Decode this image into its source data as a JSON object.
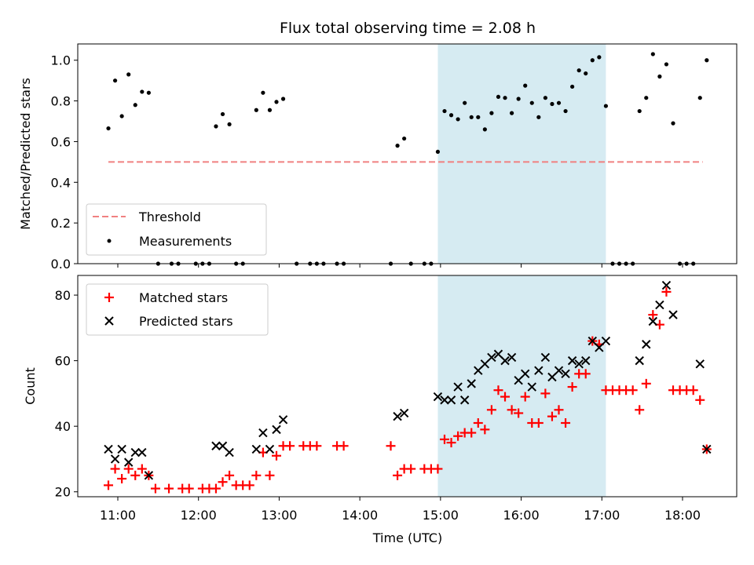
{
  "chart_data": {
    "type": "scatter",
    "title": "Flux total observing time = 2.08 h",
    "xlabel": "Time (UTC)",
    "x_ticks": [
      "11:00",
      "12:00",
      "13:00",
      "14:00",
      "15:00",
      "16:00",
      "17:00",
      "18:00"
    ],
    "highlight": {
      "start": "14:58",
      "end": "17:03",
      "color": "#add8e6"
    },
    "top": {
      "ylabel": "Matched/Predicted stars",
      "ylim": [
        0,
        1.08
      ],
      "y_ticks": [
        "0.0",
        "0.2",
        "0.4",
        "0.6",
        "0.8",
        "1.0"
      ],
      "legend": {
        "placement": "lower-left",
        "entries": [
          "Threshold",
          "Measurements"
        ]
      },
      "threshold": {
        "name": "Threshold",
        "value": 0.5,
        "x_start": "10:53",
        "x_end": "18:15",
        "color": "#f08080"
      },
      "series": [
        {
          "name": "Measurements",
          "color": "#000000",
          "points": [
            [
              "10:53",
              0.665
            ],
            [
              "10:58",
              0.9
            ],
            [
              "11:03",
              0.725
            ],
            [
              "11:08",
              0.93
            ],
            [
              "11:13",
              0.78
            ],
            [
              "11:18",
              0.845
            ],
            [
              "11:23",
              0.84
            ],
            [
              "11:30",
              0
            ],
            [
              "11:40",
              0
            ],
            [
              "11:45",
              0
            ],
            [
              "11:58",
              0
            ],
            [
              "12:03",
              0
            ],
            [
              "12:08",
              0
            ],
            [
              "12:13",
              0.675
            ],
            [
              "12:18",
              0.735
            ],
            [
              "12:23",
              0.685
            ],
            [
              "12:28",
              0
            ],
            [
              "12:33",
              0
            ],
            [
              "12:43",
              0.755
            ],
            [
              "12:48",
              0.84
            ],
            [
              "12:53",
              0.755
            ],
            [
              "12:58",
              0.795
            ],
            [
              "13:03",
              0.81
            ],
            [
              "13:13",
              0
            ],
            [
              "13:23",
              0
            ],
            [
              "13:28",
              0
            ],
            [
              "13:33",
              0
            ],
            [
              "13:43",
              0
            ],
            [
              "13:48",
              0
            ],
            [
              "14:23",
              0
            ],
            [
              "14:28",
              0.58
            ],
            [
              "14:33",
              0.615
            ],
            [
              "14:38",
              0
            ],
            [
              "14:48",
              0
            ],
            [
              "14:53",
              0
            ],
            [
              "14:58",
              0.55
            ],
            [
              "15:03",
              0.75
            ],
            [
              "15:08",
              0.73
            ],
            [
              "15:13",
              0.71
            ],
            [
              "15:18",
              0.79
            ],
            [
              "15:23",
              0.72
            ],
            [
              "15:28",
              0.72
            ],
            [
              "15:33",
              0.66
            ],
            [
              "15:38",
              0.74
            ],
            [
              "15:43",
              0.82
            ],
            [
              "15:48",
              0.815
            ],
            [
              "15:53",
              0.74
            ],
            [
              "15:58",
              0.81
            ],
            [
              "16:03",
              0.875
            ],
            [
              "16:08",
              0.79
            ],
            [
              "16:13",
              0.72
            ],
            [
              "16:18",
              0.815
            ],
            [
              "16:23",
              0.785
            ],
            [
              "16:28",
              0.79
            ],
            [
              "16:33",
              0.75
            ],
            [
              "16:38",
              0.87
            ],
            [
              "16:43",
              0.95
            ],
            [
              "16:48",
              0.935
            ],
            [
              "16:53",
              1.0
            ],
            [
              "16:58",
              1.015
            ],
            [
              "17:03",
              0.775
            ],
            [
              "17:08",
              0
            ],
            [
              "17:13",
              0
            ],
            [
              "17:18",
              0
            ],
            [
              "17:23",
              0
            ],
            [
              "17:28",
              0.75
            ],
            [
              "17:33",
              0.815
            ],
            [
              "17:38",
              1.03
            ],
            [
              "17:43",
              0.92
            ],
            [
              "17:48",
              0.98
            ],
            [
              "17:53",
              0.69
            ],
            [
              "17:58",
              0
            ],
            [
              "18:03",
              0
            ],
            [
              "18:08",
              0
            ],
            [
              "18:13",
              0.815
            ],
            [
              "18:18",
              1.0
            ]
          ]
        }
      ]
    },
    "bottom": {
      "ylabel": "Count",
      "ylim": [
        18.5,
        86
      ],
      "y_ticks": [
        "20",
        "40",
        "60",
        "80"
      ],
      "legend": {
        "placement": "upper-left",
        "entries": [
          "Matched stars",
          "Predicted stars"
        ]
      },
      "series": [
        {
          "name": "Matched stars",
          "marker": "plus",
          "color": "#ff0000",
          "points": [
            [
              "10:53",
              22
            ],
            [
              "10:58",
              27
            ],
            [
              "11:03",
              24
            ],
            [
              "11:08",
              27
            ],
            [
              "11:13",
              25
            ],
            [
              "11:18",
              27
            ],
            [
              "11:23",
              25
            ],
            [
              "11:28",
              21
            ],
            [
              "11:38",
              21
            ],
            [
              "11:48",
              21
            ],
            [
              "11:53",
              21
            ],
            [
              "12:03",
              21
            ],
            [
              "12:08",
              21
            ],
            [
              "12:13",
              21
            ],
            [
              "12:18",
              23
            ],
            [
              "12:23",
              25
            ],
            [
              "12:28",
              22
            ],
            [
              "12:33",
              22
            ],
            [
              "12:38",
              22
            ],
            [
              "12:43",
              25
            ],
            [
              "12:48",
              32
            ],
            [
              "12:53",
              25
            ],
            [
              "12:58",
              31
            ],
            [
              "13:03",
              34
            ],
            [
              "13:08",
              34
            ],
            [
              "13:18",
              34
            ],
            [
              "13:23",
              34
            ],
            [
              "13:28",
              34
            ],
            [
              "13:43",
              34
            ],
            [
              "13:48",
              34
            ],
            [
              "14:23",
              34
            ],
            [
              "14:28",
              25
            ],
            [
              "14:33",
              27
            ],
            [
              "14:38",
              27
            ],
            [
              "14:48",
              27
            ],
            [
              "14:53",
              27
            ],
            [
              "14:58",
              27
            ],
            [
              "15:03",
              36
            ],
            [
              "15:08",
              35
            ],
            [
              "15:13",
              37
            ],
            [
              "15:18",
              38
            ],
            [
              "15:23",
              38
            ],
            [
              "15:28",
              41
            ],
            [
              "15:33",
              39
            ],
            [
              "15:38",
              45
            ],
            [
              "15:43",
              51
            ],
            [
              "15:48",
              49
            ],
            [
              "15:53",
              45
            ],
            [
              "15:58",
              44
            ],
            [
              "16:03",
              49
            ],
            [
              "16:08",
              41
            ],
            [
              "16:13",
              41
            ],
            [
              "16:18",
              50
            ],
            [
              "16:23",
              43
            ],
            [
              "16:28",
              45
            ],
            [
              "16:33",
              41
            ],
            [
              "16:38",
              52
            ],
            [
              "16:43",
              56
            ],
            [
              "16:48",
              56
            ],
            [
              "16:53",
              66
            ],
            [
              "16:58",
              65
            ],
            [
              "17:03",
              51
            ],
            [
              "17:08",
              51
            ],
            [
              "17:13",
              51
            ],
            [
              "17:18",
              51
            ],
            [
              "17:23",
              51
            ],
            [
              "17:28",
              45
            ],
            [
              "17:33",
              53
            ],
            [
              "17:38",
              74
            ],
            [
              "17:43",
              71
            ],
            [
              "17:48",
              81
            ],
            [
              "17:53",
              51
            ],
            [
              "17:58",
              51
            ],
            [
              "18:03",
              51
            ],
            [
              "18:08",
              51
            ],
            [
              "18:13",
              48
            ],
            [
              "18:18",
              33
            ]
          ]
        },
        {
          "name": "Predicted stars",
          "marker": "x",
          "color": "#000000",
          "points": [
            [
              "10:53",
              33
            ],
            [
              "10:58",
              30
            ],
            [
              "11:03",
              33
            ],
            [
              "11:08",
              29
            ],
            [
              "11:13",
              32
            ],
            [
              "11:18",
              32
            ],
            [
              "11:23",
              25
            ],
            [
              "12:13",
              34
            ],
            [
              "12:18",
              34
            ],
            [
              "12:23",
              32
            ],
            [
              "12:43",
              33
            ],
            [
              "12:48",
              38
            ],
            [
              "12:53",
              33
            ],
            [
              "12:58",
              39
            ],
            [
              "13:03",
              42
            ],
            [
              "14:28",
              43
            ],
            [
              "14:33",
              44
            ],
            [
              "14:58",
              49
            ],
            [
              "15:03",
              48
            ],
            [
              "15:08",
              48
            ],
            [
              "15:13",
              52
            ],
            [
              "15:18",
              48
            ],
            [
              "15:23",
              53
            ],
            [
              "15:28",
              57
            ],
            [
              "15:33",
              59
            ],
            [
              "15:38",
              61
            ],
            [
              "15:43",
              62
            ],
            [
              "15:48",
              60
            ],
            [
              "15:53",
              61
            ],
            [
              "15:58",
              54
            ],
            [
              "16:03",
              56
            ],
            [
              "16:08",
              52
            ],
            [
              "16:13",
              57
            ],
            [
              "16:18",
              61
            ],
            [
              "16:23",
              55
            ],
            [
              "16:28",
              57
            ],
            [
              "16:33",
              56
            ],
            [
              "16:38",
              60
            ],
            [
              "16:43",
              59
            ],
            [
              "16:48",
              60
            ],
            [
              "16:53",
              66
            ],
            [
              "16:58",
              64
            ],
            [
              "17:03",
              66
            ],
            [
              "17:28",
              60
            ],
            [
              "17:33",
              65
            ],
            [
              "17:38",
              72
            ],
            [
              "17:43",
              77
            ],
            [
              "17:48",
              83
            ],
            [
              "17:53",
              74
            ],
            [
              "18:13",
              59
            ],
            [
              "18:18",
              33
            ]
          ]
        }
      ]
    }
  }
}
